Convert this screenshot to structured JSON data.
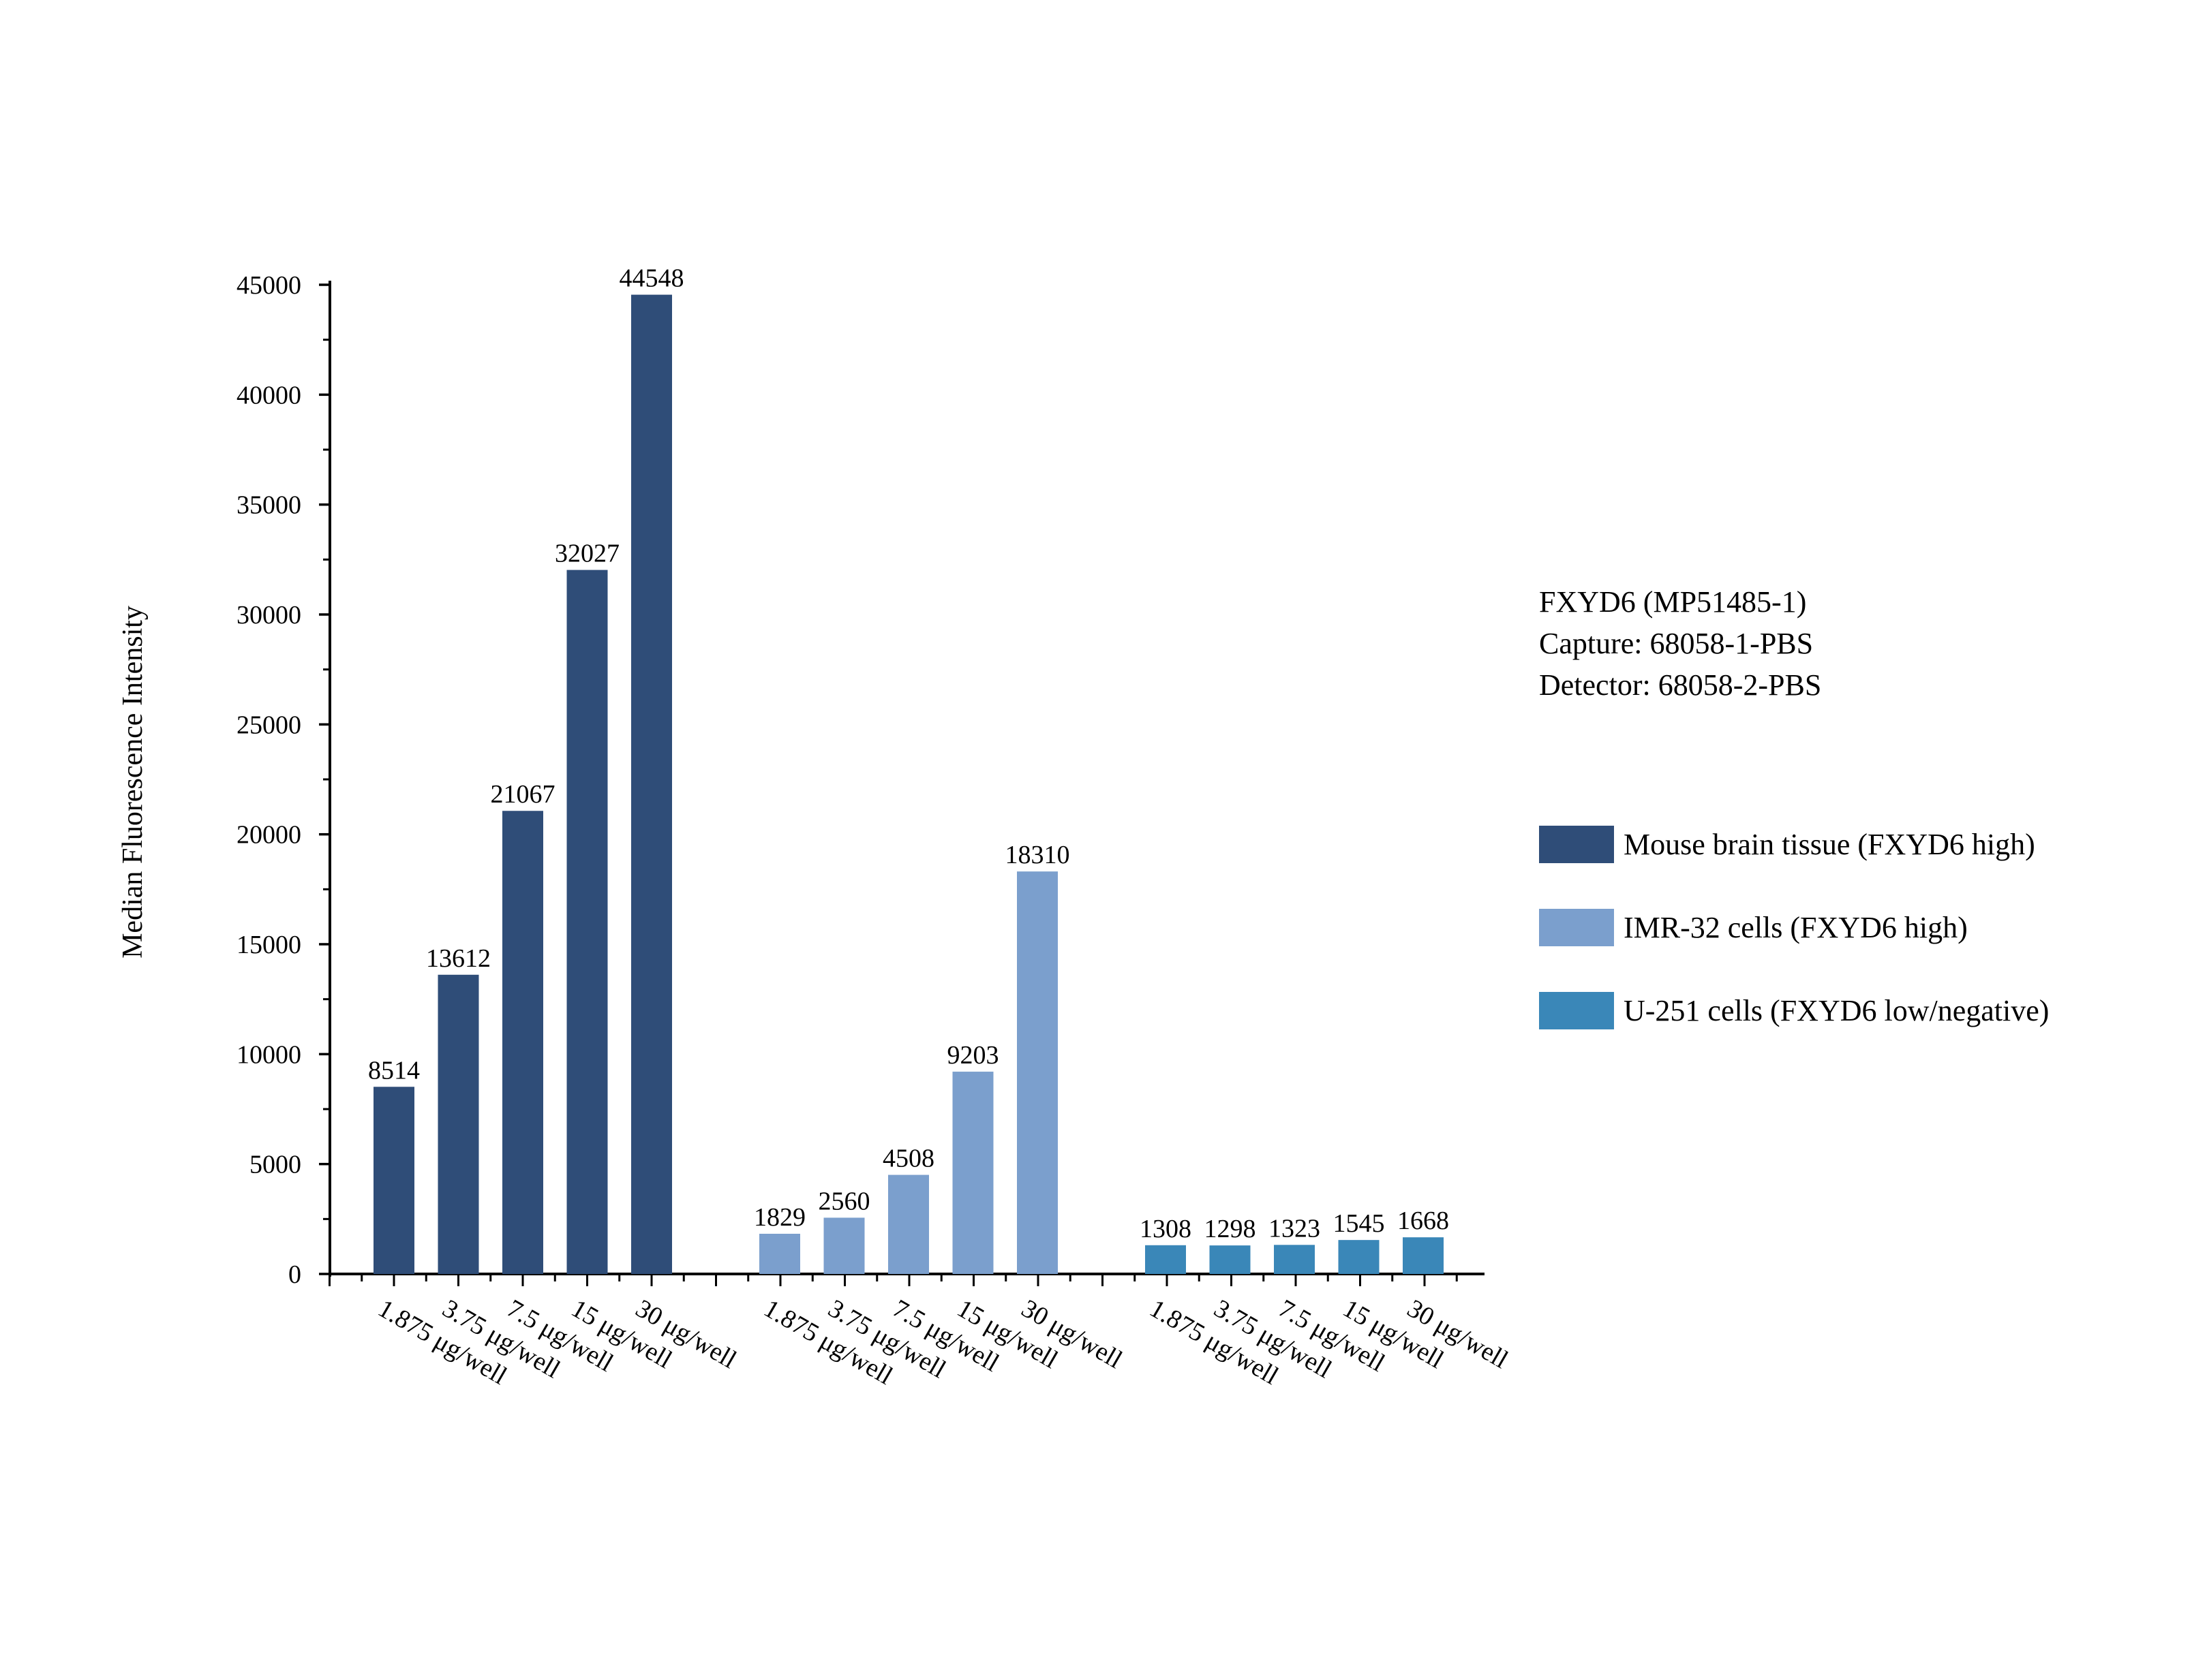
{
  "chart_data": {
    "type": "bar",
    "title": "",
    "xlabel": "",
    "ylabel": "Median Fluorescence Intensity",
    "ylim": [
      0,
      45000
    ],
    "y_ticks": [
      0,
      5000,
      10000,
      15000,
      20000,
      25000,
      30000,
      35000,
      40000,
      45000
    ],
    "grid": false,
    "legend_position": "right",
    "info_lines": [
      "FXYD6 (MP51485-1)",
      "Capture: 68058-1-PBS",
      "Detector: 68058-2-PBS"
    ],
    "categories": [
      "1.875 μg/well",
      "3.75 μg/well",
      "7.5 μg/well",
      "15 μg/well",
      "30 μg/well"
    ],
    "series": [
      {
        "name": "Mouse brain tissue (FXYD6 high)",
        "color": "#2f4d78",
        "values": [
          8514,
          13612,
          21067,
          32027,
          44548
        ]
      },
      {
        "name": "IMR-32 cells (FXYD6 high)",
        "color": "#7b9fcd",
        "values": [
          1829,
          2560,
          4508,
          9203,
          18310
        ]
      },
      {
        "name": "U-251 cells (FXYD6 low/negative)",
        "color": "#3a87b8",
        "values": [
          1308,
          1298,
          1323,
          1545,
          1668
        ]
      }
    ]
  }
}
